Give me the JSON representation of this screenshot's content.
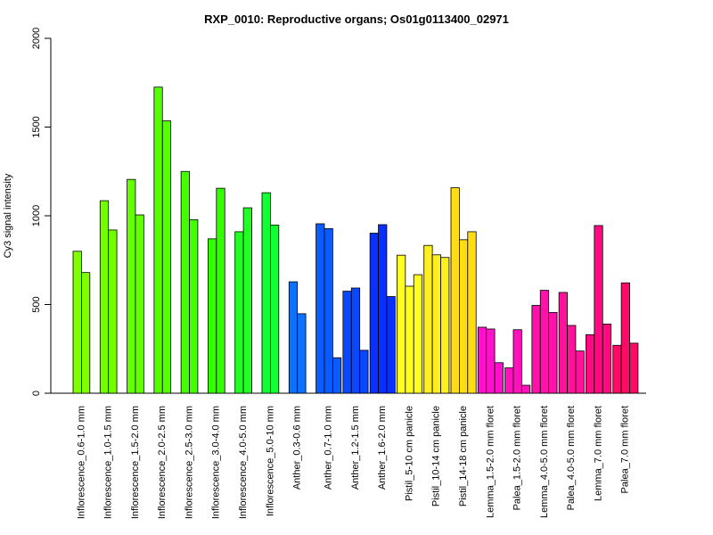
{
  "chart_data": {
    "type": "bar",
    "title": "RXP_0010: Reproductive organs; Os01g0113400_02971",
    "ylabel": "Cy3 signal intensity",
    "xlabel": "",
    "ylim": [
      0,
      2000
    ],
    "yticks": [
      0,
      500,
      1000,
      1500,
      2000
    ],
    "groups": [
      {
        "label": "Inflorescence_0.6-1.0 mm",
        "color": "#80FF00",
        "values": [
          800,
          680
        ]
      },
      {
        "label": "Inflorescence_1.0-1.5 mm",
        "color": "#73FF00",
        "values": [
          1085,
          920
        ]
      },
      {
        "label": "Inflorescence_1.5-2.0 mm",
        "color": "#66FF00",
        "values": [
          1205,
          1005
        ]
      },
      {
        "label": "Inflorescence_2.0-2.5 mm",
        "color": "#55FF00",
        "values": [
          1725,
          1535
        ]
      },
      {
        "label": "Inflorescence_2.5-3.0 mm",
        "color": "#44FF00",
        "values": [
          1250,
          978
        ]
      },
      {
        "label": "Inflorescence_3.0-4.0 mm",
        "color": "#33FF00",
        "values": [
          870,
          1155
        ]
      },
      {
        "label": "Inflorescence_4.0-5.0 mm",
        "color": "#22FF22",
        "values": [
          910,
          1045
        ]
      },
      {
        "label": "Inflorescence_5.0-10 mm",
        "color": "#11FF33",
        "values": [
          1130,
          948
        ]
      },
      {
        "label": "Anther_0.3-0.6 mm",
        "color": "#0A72FF",
        "values": [
          628,
          448
        ]
      },
      {
        "label": "Anther_0.7-1.0 mm",
        "color": "#0A5CFF",
        "values": [
          955,
          928,
          200
        ]
      },
      {
        "label": "Anther_1.2-1.5 mm",
        "color": "#0A48FF",
        "values": [
          575,
          593,
          242
        ]
      },
      {
        "label": "Anther_1.6-2.0 mm",
        "color": "#0A30FF",
        "values": [
          902,
          950,
          545
        ]
      },
      {
        "label": "Pistil_5-10 cm panicle",
        "color": "#FFFF22",
        "values": [
          778,
          603,
          668
        ]
      },
      {
        "label": "Pistil_10-14 cm panicle",
        "color": "#FFEE22",
        "values": [
          833,
          780,
          765
        ]
      },
      {
        "label": "Pistil_14-18 cm panicle",
        "color": "#FFDD11",
        "values": [
          1158,
          865,
          910
        ]
      },
      {
        "label": "Lemma_1.5-2.0 mm floret",
        "color": "#FF11CC",
        "values": [
          372,
          362,
          172
        ]
      },
      {
        "label": "Palea_1.5-2.0 mm floret",
        "color": "#FF11BB",
        "values": [
          143,
          358,
          45
        ]
      },
      {
        "label": "Lemma_4.0-5.0 mm floret",
        "color": "#FF11AA",
        "values": [
          495,
          580,
          455
        ]
      },
      {
        "label": "Palea_4.0-5.0 mm floret",
        "color": "#FF1199",
        "values": [
          568,
          382,
          238
        ]
      },
      {
        "label": "Lemma_7.0 mm floret",
        "color": "#FF0A80",
        "values": [
          330,
          945,
          390
        ]
      },
      {
        "label": "Palea_7.0 mm floret",
        "color": "#FF0A66",
        "values": [
          270,
          622,
          282
        ]
      }
    ]
  }
}
